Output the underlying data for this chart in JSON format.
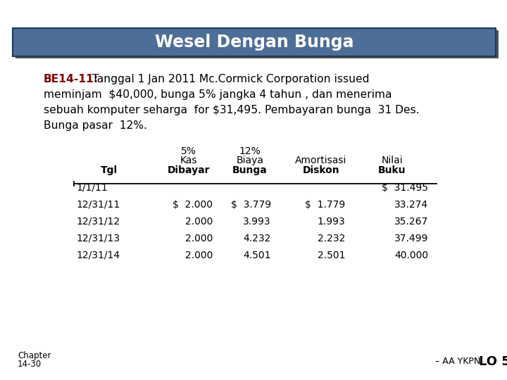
{
  "title": "Wesel Dengan Bunga",
  "title_bg": "#4d6e96",
  "title_shadow": "#2a2a2a",
  "title_color": "#ffffff",
  "body_bold": "BE14-11:",
  "body_rest_line1": " Tanggal 1 Jan 2011 Mc.Cormick Corporation issued",
  "body_line2": "meminjam  $40,000, bunga 5% jangka 4 tahun , dan menerima",
  "body_line3": "sebuah komputer seharga  for $31,495. Pembayaran bunga  31 Des.",
  "body_line4": "Bunga pasar  12%.",
  "col_h1": [
    "",
    "5%",
    "12%",
    "",
    ""
  ],
  "col_h2": [
    "",
    "Kas",
    "Biaya",
    "Amortisasi",
    "Nilai"
  ],
  "col_h3": [
    "Tgl",
    "Dibayar",
    "Bunga",
    "Diskon",
    "Buku"
  ],
  "table_rows": [
    [
      "1/1/11",
      "",
      "",
      "",
      "$  31.495"
    ],
    [
      "12/31/11",
      "$  2.000",
      "$  3.779",
      "$  1.779",
      "33.274"
    ],
    [
      "12/31/12",
      "2.000",
      "3.993",
      "1.993",
      "35.267"
    ],
    [
      "12/31/13",
      "2.000",
      "4.232",
      "2.232",
      "37.499"
    ],
    [
      "12/31/14",
      "2.000",
      "4.501",
      "2.501",
      "40.000"
    ]
  ],
  "footer_ch1": "Chapter",
  "footer_ch2": "14-30",
  "footer_r1": "– AA YKPN",
  "footer_r2": "LO 5",
  "bg": "#ffffff",
  "fg": "#000000",
  "bold_color": "#800000"
}
